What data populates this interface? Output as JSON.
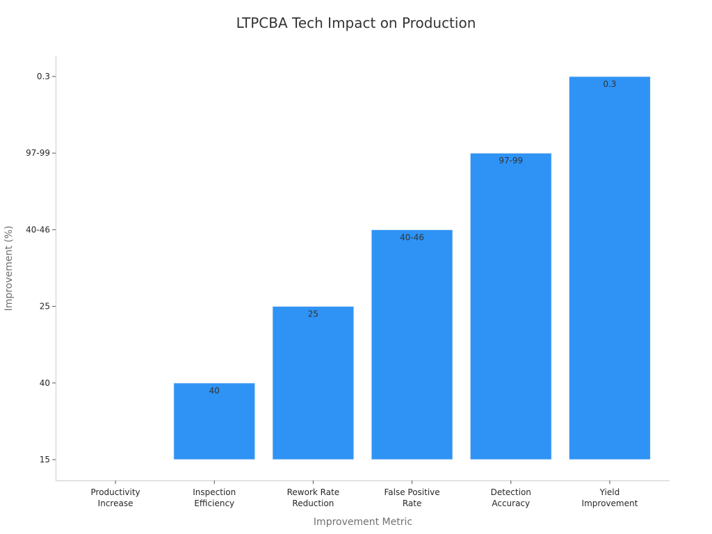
{
  "chart_data": {
    "type": "bar",
    "title": "LTPCBA Tech Impact on Production",
    "xlabel": "Improvement Metric",
    "ylabel": "Improvement (%)",
    "y_axis": "categorical",
    "y_ticks": [
      "15",
      "40",
      "25",
      "40-46",
      "97-99",
      "0.3"
    ],
    "categories": [
      [
        "Productivity",
        "Increase"
      ],
      [
        "Inspection",
        "Efficiency"
      ],
      [
        "Rework Rate",
        "Reduction"
      ],
      [
        "False Positive",
        "Rate"
      ],
      [
        "Detection",
        "Accuracy"
      ],
      [
        "Yield",
        "Improvement"
      ]
    ],
    "values": [
      "15",
      "40",
      "25",
      "40-46",
      "97-99",
      "0.3"
    ],
    "data_labels": [
      "",
      "40",
      "25",
      "40-46",
      "97-99",
      "0.3"
    ],
    "bar_color": "#2e93f5",
    "grid": false
  }
}
